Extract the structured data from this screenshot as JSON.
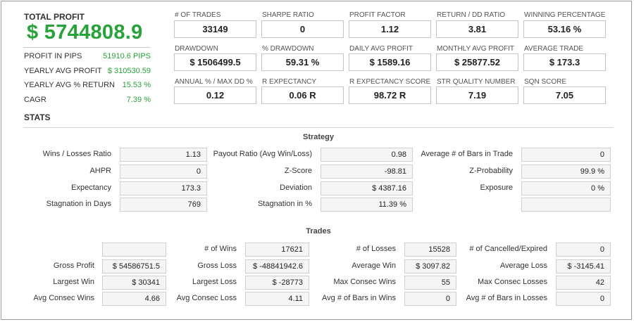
{
  "summary": {
    "total_profit_label": "TOTAL PROFIT",
    "total_profit_value": "$ 5744808.9",
    "rows": [
      {
        "label": "PROFIT IN PIPS",
        "value": "51910.6 PIPS"
      },
      {
        "label": "YEARLY AVG PROFIT",
        "value": "$ 310530.59"
      },
      {
        "label": "YEARLY AVG % RETURN",
        "value": "15.53 %"
      },
      {
        "label": "CAGR",
        "value": "7.39 %"
      }
    ]
  },
  "kpis": [
    {
      "label": "# OF TRADES",
      "value": "33149"
    },
    {
      "label": "SHARPE RATIO",
      "value": "0"
    },
    {
      "label": "PROFIT FACTOR",
      "value": "1.12"
    },
    {
      "label": "RETURN / DD RATIO",
      "value": "3.81"
    },
    {
      "label": "WINNING PERCENTAGE",
      "value": "53.16 %"
    },
    {
      "label": "DRAWDOWN",
      "value": "$ 1506499.5"
    },
    {
      "label": "% DRAWDOWN",
      "value": "59.31 %"
    },
    {
      "label": "DAILY AVG PROFIT",
      "value": "$ 1589.16"
    },
    {
      "label": "MONTHLY AVG PROFIT",
      "value": "$ 25877.52"
    },
    {
      "label": "AVERAGE TRADE",
      "value": "$ 173.3"
    },
    {
      "label": "ANNUAL % / MAX DD %",
      "value": "0.12"
    },
    {
      "label": "R EXPECTANCY",
      "value": "0.06 R"
    },
    {
      "label": "R EXPECTANCY SCORE",
      "value": "98.72 R"
    },
    {
      "label": "STR QUALITY NUMBER",
      "value": "7.19"
    },
    {
      "label": "SQN SCORE",
      "value": "7.05"
    }
  ],
  "stats_title": "STATS",
  "strategy": {
    "title": "Strategy",
    "rows": [
      [
        {
          "label": "Wins / Losses Ratio",
          "value": "1.13"
        },
        {
          "label": "Payout Ratio (Avg Win/Loss)",
          "value": "0.98"
        },
        {
          "label": "Average # of Bars in Trade",
          "value": "0"
        }
      ],
      [
        {
          "label": "AHPR",
          "value": "0"
        },
        {
          "label": "Z-Score",
          "value": "-98.81"
        },
        {
          "label": "Z-Probability",
          "value": "99.9 %"
        }
      ],
      [
        {
          "label": "Expectancy",
          "value": "173.3"
        },
        {
          "label": "Deviation",
          "value": "$ 4387.16"
        },
        {
          "label": "Exposure",
          "value": "0 %"
        }
      ],
      [
        {
          "label": "Stagnation in Days",
          "value": "769"
        },
        {
          "label": "Stagnation in %",
          "value": "11.39 %"
        },
        {
          "label": "",
          "value": ""
        }
      ]
    ]
  },
  "trades": {
    "title": "Trades",
    "rows": [
      [
        {
          "label": "",
          "value": ""
        },
        {
          "label": "# of Wins",
          "value": "17621"
        },
        {
          "label": "# of Losses",
          "value": "15528"
        },
        {
          "label": "# of Cancelled/Expired",
          "value": "0"
        }
      ],
      [
        {
          "label": "Gross Profit",
          "value": "$ 54586751.5"
        },
        {
          "label": "Gross Loss",
          "value": "$ -48841942.6"
        },
        {
          "label": "Average Win",
          "value": "$ 3097.82"
        },
        {
          "label": "Average Loss",
          "value": "$ -3145.41"
        }
      ],
      [
        {
          "label": "Largest Win",
          "value": "$ 30341"
        },
        {
          "label": "Largest Loss",
          "value": "$ -28773"
        },
        {
          "label": "Max Consec Wins",
          "value": "55"
        },
        {
          "label": "Max Consec Losses",
          "value": "42"
        }
      ],
      [
        {
          "label": "Avg Consec Wins",
          "value": "4.66"
        },
        {
          "label": "Avg Consec Loss",
          "value": "4.11"
        },
        {
          "label": "Avg # of Bars in Wins",
          "value": "0"
        },
        {
          "label": "Avg # of Bars in Losses",
          "value": "0"
        }
      ]
    ]
  }
}
